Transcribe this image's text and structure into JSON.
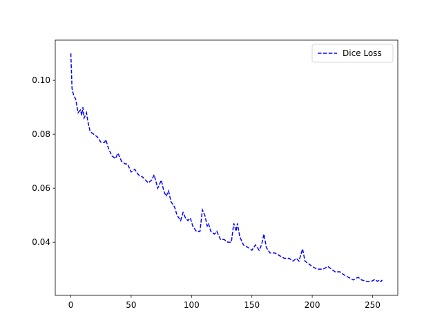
{
  "chart_data": {
    "type": "line",
    "x": [
      0,
      1,
      2,
      4,
      6,
      8,
      9,
      10,
      11,
      13,
      14,
      16,
      19,
      22,
      25,
      28,
      29,
      31,
      34,
      37,
      39,
      42,
      45,
      47,
      50,
      53,
      56,
      60,
      64,
      67,
      69,
      72,
      75,
      77,
      79,
      81,
      83,
      86,
      88,
      91,
      93,
      95,
      97,
      99,
      101,
      104,
      107,
      109,
      111,
      113,
      114,
      116,
      119,
      121,
      124,
      127,
      130,
      133,
      135,
      137,
      138,
      140,
      143,
      147,
      150,
      153,
      156,
      158,
      160,
      162,
      165,
      169,
      173,
      177,
      181,
      184,
      187,
      189,
      191,
      192,
      194,
      197,
      200,
      204,
      209,
      213,
      216,
      219,
      223,
      226,
      230,
      234,
      238,
      241,
      245,
      249,
      252,
      254,
      256,
      257,
      258
    ],
    "series": [
      {
        "name": "Dice Loss",
        "color": "#0000ff",
        "linestyle": "dashed",
        "values": [
          0.11,
          0.097,
          0.095,
          0.093,
          0.088,
          0.089,
          0.087,
          0.09,
          0.086,
          0.088,
          0.085,
          0.081,
          0.08,
          0.079,
          0.077,
          0.077,
          0.078,
          0.075,
          0.072,
          0.071,
          0.073,
          0.07,
          0.069,
          0.069,
          0.066,
          0.067,
          0.065,
          0.064,
          0.062,
          0.063,
          0.065,
          0.06,
          0.063,
          0.059,
          0.057,
          0.059,
          0.055,
          0.053,
          0.05,
          0.048,
          0.051,
          0.049,
          0.048,
          0.049,
          0.046,
          0.044,
          0.044,
          0.052,
          0.05,
          0.046,
          0.047,
          0.044,
          0.043,
          0.044,
          0.041,
          0.041,
          0.04,
          0.04,
          0.047,
          0.044,
          0.047,
          0.042,
          0.039,
          0.038,
          0.037,
          0.039,
          0.037,
          0.039,
          0.043,
          0.038,
          0.036,
          0.036,
          0.035,
          0.034,
          0.034,
          0.033,
          0.034,
          0.033,
          0.036,
          0.0375,
          0.033,
          0.032,
          0.031,
          0.03,
          0.03,
          0.031,
          0.03,
          0.029,
          0.029,
          0.028,
          0.027,
          0.026,
          0.027,
          0.026,
          0.0255,
          0.0255,
          0.0262,
          0.0255,
          0.026,
          0.0254,
          0.026
        ]
      }
    ],
    "xlim": [
      -12.9,
      270.9
    ],
    "xticks": [
      0,
      50,
      100,
      150,
      200,
      250
    ],
    "ylim": [
      0.0203,
      0.1149
    ],
    "yticks": [
      0.04,
      0.06,
      0.08,
      {
        "value": 0.1,
        "label": "0.10"
      }
    ],
    "legend": "upper right",
    "grid": false
  }
}
